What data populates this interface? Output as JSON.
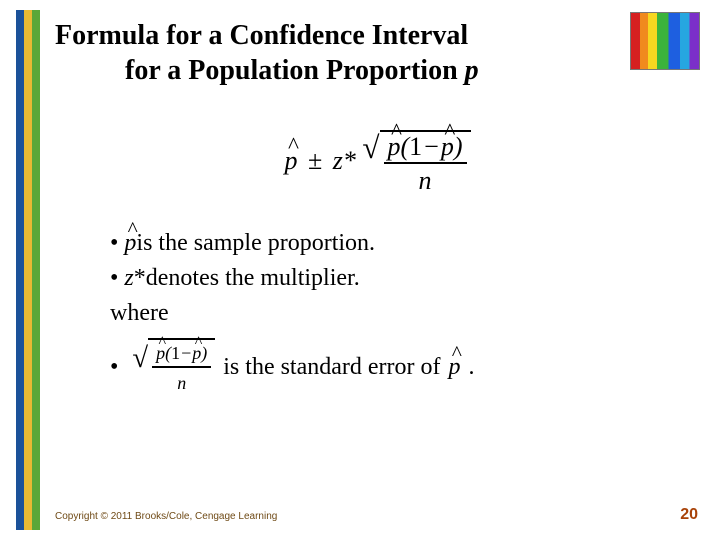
{
  "title": {
    "line1": "Formula for a Confidence Interval",
    "line2_prefix": "for a Population Proportion ",
    "line2_var": "p"
  },
  "formula": {
    "phat": "p",
    "pm": "±",
    "zstar": "z*",
    "one": "1",
    "minus": "−",
    "n": "n"
  },
  "bullets": {
    "b1_prefix": "• ",
    "b1_var": "p",
    "b1_text": " is the sample proportion.",
    "b2_prefix": "• ",
    "b2_var": "z",
    "b2_star": "*",
    "b2_text": " denotes the multiplier.",
    "where": "where",
    "b3_prefix": "• ",
    "b3_text": " is the standard error of ",
    "b3_var": "p",
    "b3_period": "."
  },
  "footer": {
    "copyright": "Copyright © 2011 Brooks/Cole, Cengage Learning",
    "page": "20"
  },
  "colors": {
    "stripe_blue": "#1b5199",
    "stripe_yellow": "#e8b933",
    "stripe_green": "#5aa738",
    "copyright_color": "#6f4a16",
    "page_color": "#a84208"
  }
}
